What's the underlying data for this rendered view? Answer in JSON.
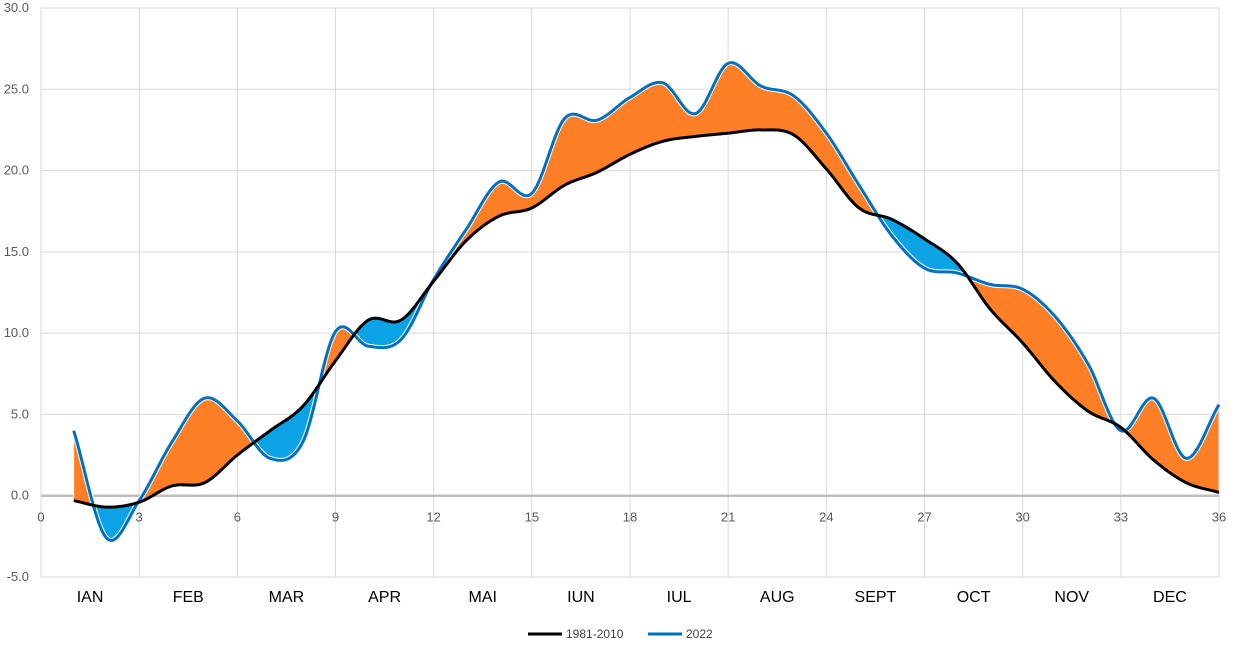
{
  "chart_data": {
    "type": "line",
    "x_range": [
      0,
      36
    ],
    "y_range": [
      -5,
      30
    ],
    "grid": true,
    "x_ticks": [
      "0",
      "3",
      "6",
      "9",
      "12",
      "15",
      "18",
      "21",
      "24",
      "27",
      "30",
      "33",
      "36"
    ],
    "x_tick_values": [
      0,
      3,
      6,
      9,
      12,
      15,
      18,
      21,
      24,
      27,
      30,
      33,
      36
    ],
    "y_ticks": [
      "-5.0",
      "0.0",
      "5.0",
      "10.0",
      "15.0",
      "20.0",
      "25.0",
      "30.0"
    ],
    "y_tick_values": [
      -5,
      0,
      5,
      10,
      15,
      20,
      25,
      30
    ],
    "months": [
      "IAN",
      "FEB",
      "MAR",
      "APR",
      "MAI",
      "IUN",
      "IUL",
      "AUG",
      "SEPT",
      "OCT",
      "NOV",
      "DEC"
    ],
    "month_boundaries": [
      3,
      6,
      9,
      12,
      15,
      18,
      21,
      24,
      27,
      30,
      33
    ],
    "legend_position": "bottom",
    "colors": {
      "above": "#FF7F27",
      "below": "#0BA2E6",
      "baseline": "#000000",
      "current": "#0070C0",
      "zero_line": "#BFBFBF",
      "grid": "#D9D9D9"
    },
    "series": [
      {
        "name": "1981-2010",
        "color": "#000000",
        "x": [
          1,
          2,
          3,
          4,
          5,
          6,
          7,
          8,
          9,
          10,
          11,
          12,
          13,
          14,
          15,
          16,
          17,
          18,
          19,
          20,
          21,
          22,
          23,
          24,
          25,
          26,
          27,
          28,
          29,
          30,
          31,
          32,
          33,
          34,
          35,
          36
        ],
        "y": [
          -0.3,
          -0.7,
          -0.4,
          0.6,
          0.8,
          2.5,
          4.0,
          5.5,
          8.3,
          10.8,
          10.8,
          13.2,
          15.7,
          17.2,
          17.7,
          19.1,
          19.9,
          21.0,
          21.8,
          22.1,
          22.3,
          22.5,
          22.2,
          20.1,
          17.7,
          17.0,
          15.8,
          14.3,
          11.5,
          9.4,
          7.0,
          5.2,
          4.2,
          2.2,
          0.8,
          0.2
        ]
      },
      {
        "name": "2022",
        "color": "#0070C0",
        "x": [
          1,
          2,
          3,
          4,
          5,
          6,
          7,
          8,
          9,
          10,
          11,
          12,
          13,
          14,
          15,
          16,
          17,
          18,
          19,
          20,
          21,
          22,
          23,
          24,
          25,
          26,
          27,
          28,
          29,
          30,
          31,
          32,
          33,
          34,
          35,
          36
        ],
        "y": [
          4.0,
          -2.6,
          -0.3,
          3.3,
          6.0,
          4.6,
          2.3,
          3.3,
          10.1,
          9.2,
          9.6,
          13.3,
          16.4,
          19.3,
          18.6,
          23.2,
          23.1,
          24.5,
          25.4,
          23.5,
          26.6,
          25.2,
          24.6,
          22.3,
          19.1,
          16.0,
          14.0,
          13.7,
          13.0,
          12.7,
          11.0,
          8.1,
          4.0,
          6.0,
          2.3,
          5.6
        ]
      }
    ]
  }
}
